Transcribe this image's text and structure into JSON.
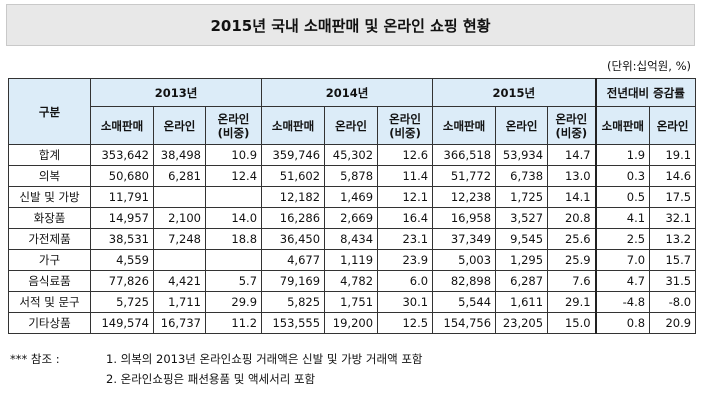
{
  "title": "2015년 국내 소매판매 및 온라인 쇼핑 현황",
  "unit": "(단위:십억원, %)",
  "header": {
    "category": "구분",
    "years": [
      "2013년",
      "2014년",
      "2015년"
    ],
    "change": "전년대비 증감률",
    "sub": {
      "retail": "소매판매",
      "online": "온라인",
      "share_l1": "온라인",
      "share_l2": "(비중)"
    }
  },
  "rows": [
    {
      "cat": "합계",
      "v": [
        "353,642",
        "38,498",
        "10.9",
        "359,746",
        "45,302",
        "12.6",
        "366,518",
        "53,934",
        "14.7",
        "1.9",
        "19.1"
      ]
    },
    {
      "cat": "의복",
      "v": [
        "50,680",
        "6,281",
        "12.4",
        "51,602",
        "5,878",
        "11.4",
        "51,772",
        "6,738",
        "13.0",
        "0.3",
        "14.6"
      ]
    },
    {
      "cat": "신발 및 가방",
      "v": [
        "11,791",
        "",
        "",
        "12,182",
        "1,469",
        "12.1",
        "12,238",
        "1,725",
        "14.1",
        "0.5",
        "17.5"
      ]
    },
    {
      "cat": "화장품",
      "v": [
        "14,957",
        "2,100",
        "14.0",
        "16,286",
        "2,669",
        "16.4",
        "16,958",
        "3,527",
        "20.8",
        "4.1",
        "32.1"
      ]
    },
    {
      "cat": "가전제품",
      "v": [
        "38,531",
        "7,248",
        "18.8",
        "36,450",
        "8,434",
        "23.1",
        "37,349",
        "9,545",
        "25.6",
        "2.5",
        "13.2"
      ]
    },
    {
      "cat": "가구",
      "v": [
        "4,559",
        "",
        "",
        "4,677",
        "1,119",
        "23.9",
        "5,003",
        "1,295",
        "25.9",
        "7.0",
        "15.7"
      ]
    },
    {
      "cat": "음식료품",
      "v": [
        "77,826",
        "4,421",
        "5.7",
        "79,169",
        "4,782",
        "6.0",
        "82,898",
        "6,287",
        "7.6",
        "4.7",
        "31.5"
      ]
    },
    {
      "cat": "서적 및 문구",
      "v": [
        "5,725",
        "1,711",
        "29.9",
        "5,825",
        "1,751",
        "30.1",
        "5,544",
        "1,611",
        "29.1",
        "-4.8",
        "-8.0"
      ]
    },
    {
      "cat": "기타상품",
      "v": [
        "149,574",
        "16,737",
        "11.2",
        "153,555",
        "19,200",
        "12.5",
        "154,756",
        "23,205",
        "15.0",
        "0.8",
        "20.9"
      ]
    }
  ],
  "notes": {
    "mark": "*** 참조 :",
    "n1": "1. 의복의 2013년 온라인쇼핑 거래액은 신발 및 가방 거래액 포함",
    "n2": "2. 온라인쇼핑은 패션용품 및 액세서리 포함"
  }
}
